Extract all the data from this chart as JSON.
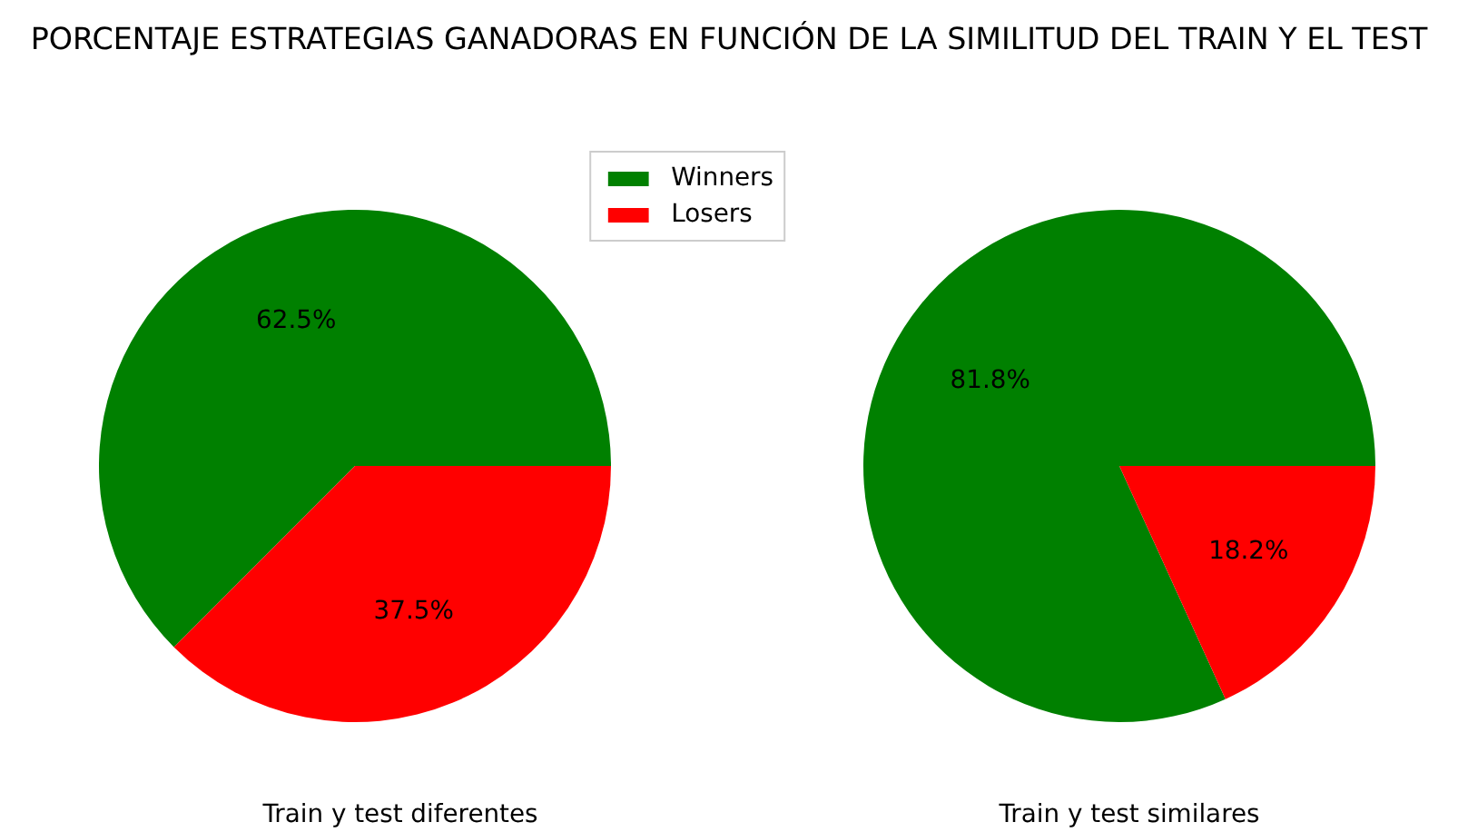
{
  "chart_data": [
    {
      "type": "pie",
      "title": "PORCENTAJE ESTRATEGIAS GANADORAS EN FUNCIÓN DE LA SIMILITUD DEL TRAIN Y EL TEST",
      "xlabel": "Train y test diferentes",
      "categories": [
        "Winners",
        "Losers"
      ],
      "values": [
        62.5,
        37.5
      ],
      "colors": [
        "#008000",
        "#ff0000"
      ],
      "value_labels": [
        "62.5%",
        "37.5%"
      ],
      "legend": "top right"
    },
    {
      "type": "pie",
      "xlabel": "Train y test similares",
      "categories": [
        null,
        null
      ],
      "values": [
        81.8,
        18.2
      ],
      "colors": [
        "#008000",
        "#ff0000"
      ],
      "value_labels": [
        "81.8%",
        "18.2%"
      ]
    }
  ]
}
